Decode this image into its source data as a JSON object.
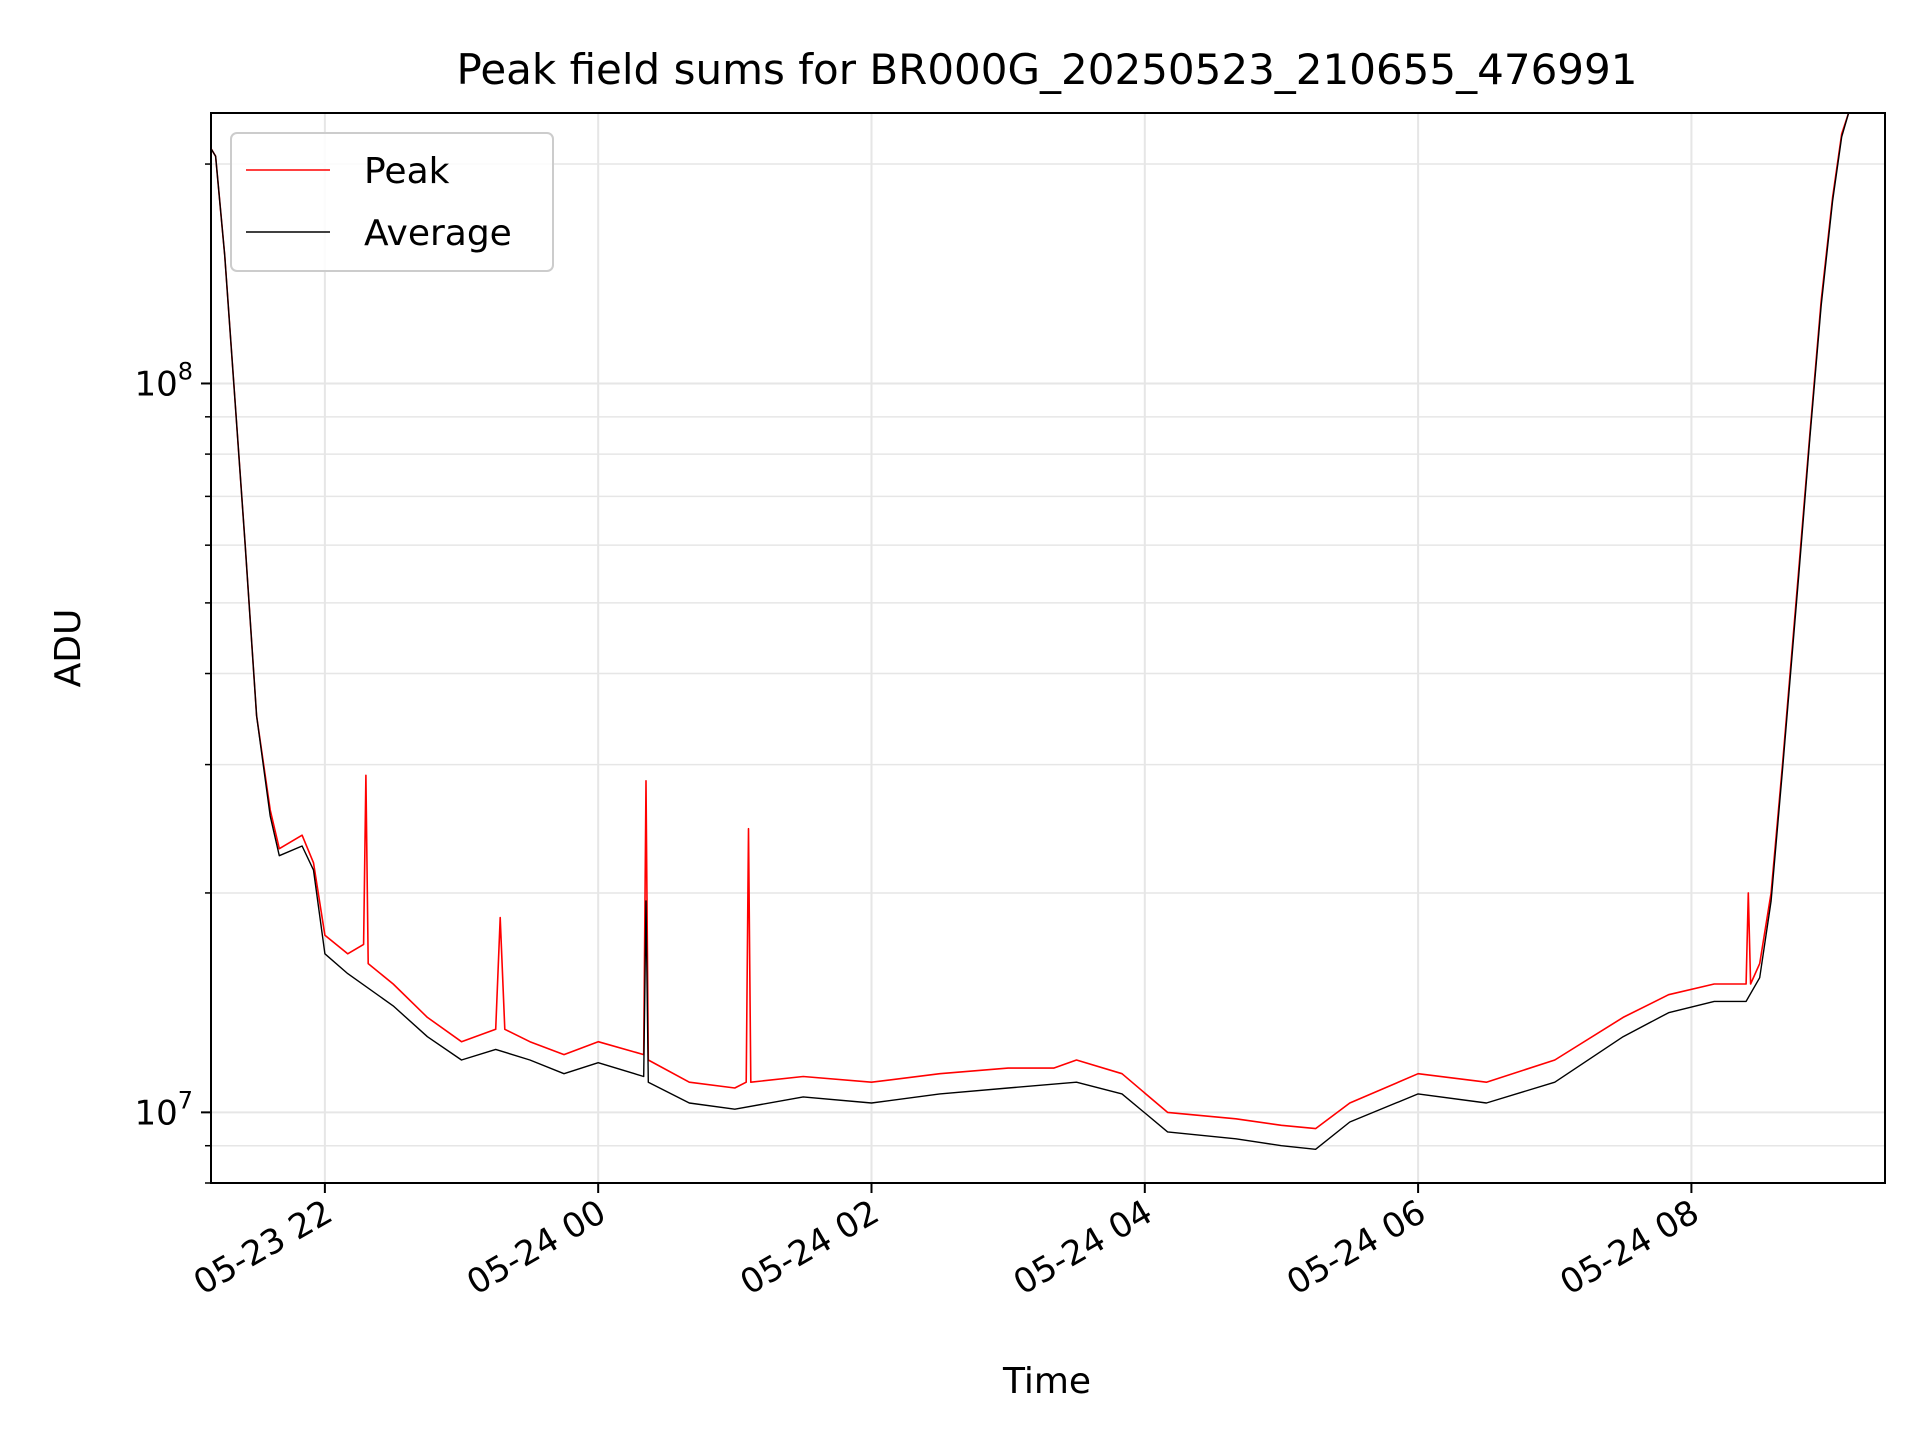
{
  "chart_data": {
    "type": "line",
    "title": "Peak field sums for BR000G_20250523_210655_476991",
    "xlabel": "Time",
    "ylabel": "ADU",
    "yscale": "log",
    "xlim": [
      "2025-05-23 21:10",
      "2025-05-24 09:25"
    ],
    "ylim": [
      8000000,
      235000000
    ],
    "grid": true,
    "legend_position": "top-left",
    "x_ticks": [
      {
        "t": "2025-05-23 22:00",
        "label": "05-23 22"
      },
      {
        "t": "2025-05-24 00:00",
        "label": "05-24 00"
      },
      {
        "t": "2025-05-24 02:00",
        "label": "05-24 02"
      },
      {
        "t": "2025-05-24 04:00",
        "label": "05-24 04"
      },
      {
        "t": "2025-05-24 06:00",
        "label": "05-24 06"
      },
      {
        "t": "2025-05-24 08:00",
        "label": "05-24 08"
      }
    ],
    "y_major_ticks": [
      {
        "value": 10000000,
        "base": "10",
        "exp": "7"
      },
      {
        "value": 100000000,
        "base": "10",
        "exp": "8"
      }
    ],
    "y_minor_ticks": [
      8000000,
      9000000,
      20000000,
      30000000,
      40000000,
      50000000,
      60000000,
      70000000,
      80000000,
      90000000,
      200000000
    ],
    "series": [
      {
        "name": "Peak",
        "color": "#ff0000",
        "points": [
          [
            "2025-05-23 21:10",
            210000000
          ],
          [
            "2025-05-23 21:12",
            205000000
          ],
          [
            "2025-05-23 21:16",
            150000000
          ],
          [
            "2025-05-23 21:20",
            100000000
          ],
          [
            "2025-05-23 21:25",
            60000000
          ],
          [
            "2025-05-23 21:30",
            35000000
          ],
          [
            "2025-05-23 21:36",
            26000000
          ],
          [
            "2025-05-23 21:40",
            23000000
          ],
          [
            "2025-05-23 21:50",
            24000000
          ],
          [
            "2025-05-23 21:55",
            22000000
          ],
          [
            "2025-05-23 22:00",
            17500000
          ],
          [
            "2025-05-23 22:10",
            16500000
          ],
          [
            "2025-05-23 22:17",
            17000000
          ],
          [
            "2025-05-23 22:18",
            29000000
          ],
          [
            "2025-05-23 22:19",
            16000000
          ],
          [
            "2025-05-23 22:30",
            15000000
          ],
          [
            "2025-05-23 22:45",
            13500000
          ],
          [
            "2025-05-23 23:00",
            12500000
          ],
          [
            "2025-05-23 23:15",
            13000000
          ],
          [
            "2025-05-23 23:17",
            18500000
          ],
          [
            "2025-05-23 23:19",
            13000000
          ],
          [
            "2025-05-23 23:30",
            12500000
          ],
          [
            "2025-05-23 23:45",
            12000000
          ],
          [
            "2025-05-24 00:00",
            12500000
          ],
          [
            "2025-05-24 00:20",
            12000000
          ],
          [
            "2025-05-24 00:21",
            28500000
          ],
          [
            "2025-05-24 00:22",
            11800000
          ],
          [
            "2025-05-24 00:40",
            11000000
          ],
          [
            "2025-05-24 01:00",
            10800000
          ],
          [
            "2025-05-24 01:05",
            11000000
          ],
          [
            "2025-05-24 01:06",
            24500000
          ],
          [
            "2025-05-24 01:07",
            11000000
          ],
          [
            "2025-05-24 01:30",
            11200000
          ],
          [
            "2025-05-24 02:00",
            11000000
          ],
          [
            "2025-05-24 02:30",
            11300000
          ],
          [
            "2025-05-24 03:00",
            11500000
          ],
          [
            "2025-05-24 03:20",
            11500000
          ],
          [
            "2025-05-24 03:30",
            11800000
          ],
          [
            "2025-05-24 03:50",
            11300000
          ],
          [
            "2025-05-24 04:10",
            10000000
          ],
          [
            "2025-05-24 04:40",
            9800000
          ],
          [
            "2025-05-24 05:00",
            9600000
          ],
          [
            "2025-05-24 05:15",
            9500000
          ],
          [
            "2025-05-24 05:30",
            10300000
          ],
          [
            "2025-05-24 06:00",
            11300000
          ],
          [
            "2025-05-24 06:30",
            11000000
          ],
          [
            "2025-05-24 07:00",
            11800000
          ],
          [
            "2025-05-24 07:30",
            13500000
          ],
          [
            "2025-05-24 07:50",
            14500000
          ],
          [
            "2025-05-24 08:10",
            15000000
          ],
          [
            "2025-05-24 08:24",
            15000000
          ],
          [
            "2025-05-24 08:25",
            20000000
          ],
          [
            "2025-05-24 08:26",
            15000000
          ],
          [
            "2025-05-24 08:30",
            16000000
          ],
          [
            "2025-05-24 08:35",
            20000000
          ],
          [
            "2025-05-24 08:40",
            30000000
          ],
          [
            "2025-05-24 08:47",
            55000000
          ],
          [
            "2025-05-24 08:52",
            85000000
          ],
          [
            "2025-05-24 08:57",
            130000000
          ],
          [
            "2025-05-24 09:02",
            180000000
          ],
          [
            "2025-05-24 09:06",
            220000000
          ],
          [
            "2025-05-24 09:09",
            235000000
          ]
        ]
      },
      {
        "name": "Average",
        "color": "#000000",
        "points": [
          [
            "2025-05-23 21:10",
            210000000
          ],
          [
            "2025-05-23 21:12",
            205000000
          ],
          [
            "2025-05-23 21:16",
            150000000
          ],
          [
            "2025-05-23 21:20",
            100000000
          ],
          [
            "2025-05-23 21:25",
            60000000
          ],
          [
            "2025-05-23 21:30",
            35000000
          ],
          [
            "2025-05-23 21:36",
            25500000
          ],
          [
            "2025-05-23 21:40",
            22500000
          ],
          [
            "2025-05-23 21:50",
            23200000
          ],
          [
            "2025-05-23 21:55",
            21500000
          ],
          [
            "2025-05-23 22:00",
            16500000
          ],
          [
            "2025-05-23 22:10",
            15500000
          ],
          [
            "2025-05-23 22:30",
            14000000
          ],
          [
            "2025-05-23 22:45",
            12700000
          ],
          [
            "2025-05-23 23:00",
            11800000
          ],
          [
            "2025-05-23 23:15",
            12200000
          ],
          [
            "2025-05-23 23:30",
            11800000
          ],
          [
            "2025-05-23 23:45",
            11300000
          ],
          [
            "2025-05-24 00:00",
            11700000
          ],
          [
            "2025-05-24 00:20",
            11200000
          ],
          [
            "2025-05-24 00:21",
            19500000
          ],
          [
            "2025-05-24 00:22",
            11000000
          ],
          [
            "2025-05-24 00:40",
            10300000
          ],
          [
            "2025-05-24 01:00",
            10100000
          ],
          [
            "2025-05-24 01:30",
            10500000
          ],
          [
            "2025-05-24 02:00",
            10300000
          ],
          [
            "2025-05-24 02:30",
            10600000
          ],
          [
            "2025-05-24 03:00",
            10800000
          ],
          [
            "2025-05-24 03:30",
            11000000
          ],
          [
            "2025-05-24 03:50",
            10600000
          ],
          [
            "2025-05-24 04:10",
            9400000
          ],
          [
            "2025-05-24 04:40",
            9200000
          ],
          [
            "2025-05-24 05:00",
            9000000
          ],
          [
            "2025-05-24 05:15",
            8900000
          ],
          [
            "2025-05-24 05:30",
            9700000
          ],
          [
            "2025-05-24 06:00",
            10600000
          ],
          [
            "2025-05-24 06:30",
            10300000
          ],
          [
            "2025-05-24 07:00",
            11000000
          ],
          [
            "2025-05-24 07:30",
            12700000
          ],
          [
            "2025-05-24 07:50",
            13700000
          ],
          [
            "2025-05-24 08:10",
            14200000
          ],
          [
            "2025-05-24 08:24",
            14200000
          ],
          [
            "2025-05-24 08:30",
            15300000
          ],
          [
            "2025-05-24 08:35",
            19500000
          ],
          [
            "2025-05-24 08:40",
            29500000
          ],
          [
            "2025-05-24 08:47",
            54000000
          ],
          [
            "2025-05-24 08:52",
            84000000
          ],
          [
            "2025-05-24 08:57",
            128000000
          ],
          [
            "2025-05-24 09:02",
            178000000
          ],
          [
            "2025-05-24 09:06",
            218000000
          ],
          [
            "2025-05-24 09:09",
            235000000
          ]
        ]
      }
    ]
  }
}
